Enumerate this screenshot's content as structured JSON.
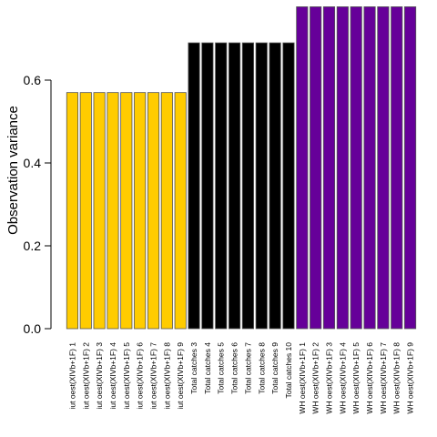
{
  "chart_data": {
    "type": "bar",
    "ylabel": "Observation variance",
    "xlabel": "",
    "title": "",
    "ylim": [
      0,
      0.75
    ],
    "yticks": [
      "0.0",
      "0.2",
      "0.4",
      "0.6"
    ],
    "ytick_values": [
      0.0,
      0.2,
      0.4,
      0.6
    ],
    "categories": [
      "iut  oest(XIVb+1F) 1",
      "iut  oest(XIVb+1F) 2",
      "iut  oest(XIVb+1F) 3",
      "iut  oest(XIVb+1F) 4",
      "iut  oest(XIVb+1F) 5",
      "iut  oest(XIVb+1F) 6",
      "iut  oest(XIVb+1F) 7",
      "iut  oest(XIVb+1F) 8",
      "iut  oest(XIVb+1F) 9",
      "Total catches 3",
      "Total catches 4",
      "Total catches 5",
      "Total catches 6",
      "Total catches 7",
      "Total catches 8",
      "Total catches 9",
      "Total catches 10",
      "WH  oest(XIVb+1F) 1",
      "WH  oest(XIVb+1F) 2",
      "WH  oest(XIVb+1F) 3",
      "WH  oest(XIVb+1F) 4",
      "WH  oest(XIVb+1F) 5",
      "WH  oest(XIVb+1F) 6",
      "WH  oest(XIVb+1F) 7",
      "WH  oest(XIVb+1F) 8",
      "WH  oest(XIVb+1F) 9"
    ],
    "values": [
      0.57,
      0.57,
      0.57,
      0.57,
      0.57,
      0.57,
      0.57,
      0.57,
      0.57,
      0.69,
      0.69,
      0.69,
      0.69,
      0.69,
      0.69,
      0.69,
      0.69,
      0.777,
      0.777,
      0.777,
      0.777,
      0.777,
      0.777,
      0.777,
      0.777,
      0.777
    ],
    "colors": [
      "#FFCC00",
      "#FFCC00",
      "#FFCC00",
      "#FFCC00",
      "#FFCC00",
      "#FFCC00",
      "#FFCC00",
      "#FFCC00",
      "#FFCC00",
      "#000000",
      "#000000",
      "#000000",
      "#000000",
      "#000000",
      "#000000",
      "#000000",
      "#000000",
      "#660099",
      "#660099",
      "#660099",
      "#660099",
      "#660099",
      "#660099",
      "#660099",
      "#660099",
      "#660099"
    ],
    "bar_border_color": "#555555",
    "grid": false
  }
}
